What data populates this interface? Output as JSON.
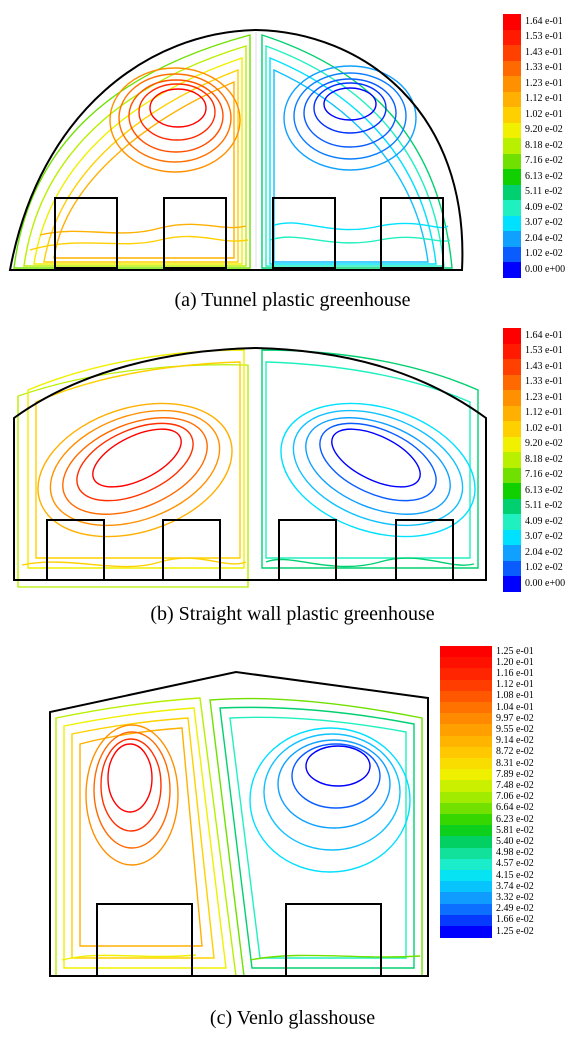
{
  "figures": [
    {
      "caption": "(a) Tunnel plastic greenhouse",
      "colorbar": [
        "1.64 e-01",
        "1.53 e-01",
        "1.43 e-01",
        "1.33 e-01",
        "1.23 e-01",
        "1.12 e-01",
        "1.02 e-01",
        "9.20 e-02",
        "8.18 e-02",
        "7.16 e-02",
        "6.13 e-02",
        "5.11 e-02",
        "4.09 e-02",
        "3.07 e-02",
        "2.04 e-02",
        "1.02 e-02",
        "0.00 e+00"
      ]
    },
    {
      "caption": "(b) Straight wall plastic greenhouse",
      "colorbar": [
        "1.64 e-01",
        "1.53 e-01",
        "1.43 e-01",
        "1.33 e-01",
        "1.23 e-01",
        "1.12 e-01",
        "1.02 e-01",
        "9.20 e-02",
        "8.18 e-02",
        "7.16 e-02",
        "6.13 e-02",
        "5.11 e-02",
        "4.09 e-02",
        "3.07 e-02",
        "2.04 e-02",
        "1.02 e-02",
        "0.00 e+00"
      ]
    },
    {
      "caption": "(c) Venlo glasshouse",
      "colorbar": [
        "1.25 e-01",
        "1.20 e-01",
        "1.16 e-01",
        "1.12 e-01",
        "1.08 e-01",
        "1.04 e-01",
        "9.97 e-02",
        "9.55 e-02",
        "9.14 e-02",
        "8.72 e-02",
        "8.31 e-02",
        "7.89 e-02",
        "7.48 e-02",
        "7.06 e-02",
        "6.64 e-02",
        "6.23 e-02",
        "5.81 e-02",
        "5.40 e-02",
        "4.98 e-02",
        "4.57 e-02",
        "4.15 e-02",
        "3.74 e-02",
        "3.32 e-02",
        "2.49 e-02",
        "1.66 e-02",
        "1.25 e-02"
      ]
    }
  ],
  "colormap": [
    "#0000ff",
    "#0a5cff",
    "#10a0ff",
    "#00e0ff",
    "#20f0c0",
    "#00d070",
    "#10d000",
    "#70e000",
    "#b8f000",
    "#f0f000",
    "#ffd000",
    "#ffb000",
    "#ff9000",
    "#ff6a00",
    "#ff4000",
    "#ff1a00",
    "#ff0000"
  ]
}
